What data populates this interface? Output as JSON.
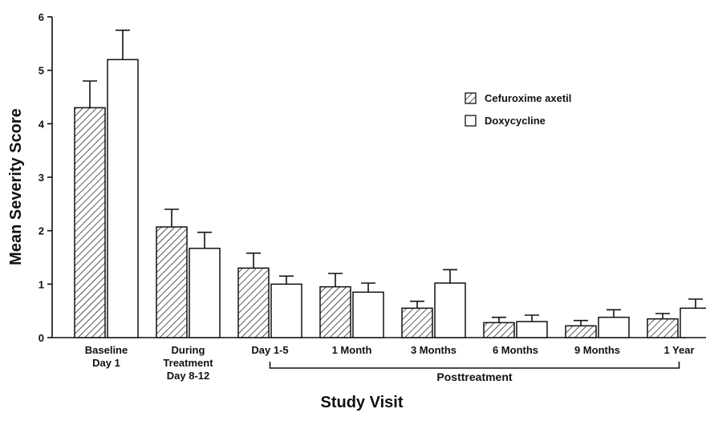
{
  "chart_data": {
    "type": "bar",
    "title": "",
    "xlabel": "Study Visit",
    "ylabel": "Mean Severity Score",
    "ylim": [
      0,
      6
    ],
    "yticks": [
      "0",
      "1",
      "2",
      "3",
      "4",
      "5",
      "6"
    ],
    "categories": [
      [
        "Baseline",
        "Day 1"
      ],
      [
        "During",
        "Treatment",
        "Day 8-12"
      ],
      [
        "Day 1-5"
      ],
      [
        "1 Month"
      ],
      [
        "3 Months"
      ],
      [
        "6 Months"
      ],
      [
        "9 Months"
      ],
      [
        "1 Year"
      ]
    ],
    "group_label": "Posttreatment",
    "group_span": [
      2,
      7
    ],
    "series": [
      {
        "name": "Cefuroxime axetil",
        "fill": "hatched",
        "values": [
          4.3,
          2.07,
          1.3,
          0.95,
          0.55,
          0.28,
          0.22,
          0.35
        ],
        "error_upper": [
          4.8,
          2.4,
          1.58,
          1.2,
          0.68,
          0.38,
          0.32,
          0.45
        ]
      },
      {
        "name": "Doxycycline",
        "fill": "white",
        "values": [
          5.2,
          1.67,
          1.0,
          0.85,
          1.02,
          0.3,
          0.38,
          0.55
        ],
        "error_upper": [
          5.75,
          1.97,
          1.15,
          1.02,
          1.27,
          0.42,
          0.52,
          0.72
        ]
      }
    ],
    "legend_position": "top-right",
    "grid": false
  }
}
